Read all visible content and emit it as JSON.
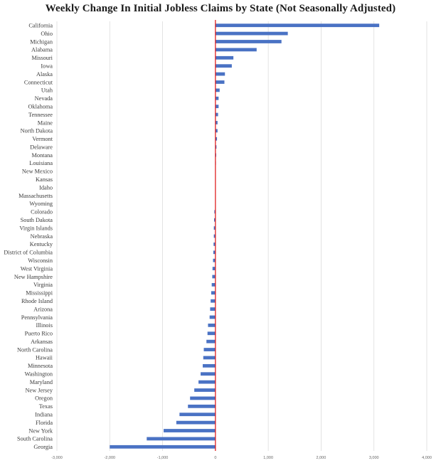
{
  "chart_data": {
    "type": "bar",
    "orientation": "horizontal",
    "title": "Weekly Change In Initial Jobless Claims by State (Not Seasonally Adjusted)",
    "xlabel": "",
    "ylabel": "",
    "xlim": [
      -3000,
      4000
    ],
    "xticks": [
      -3000,
      -2000,
      -1000,
      0,
      1000,
      2000,
      3000,
      4000
    ],
    "xtick_labels": [
      "-3,000",
      "-2,000",
      "-1,000",
      "0",
      "1,000",
      "2,000",
      "3,000",
      "4,000"
    ],
    "grid": true,
    "legend": "none",
    "bar_color": "#4a72c4",
    "zero_line_color": "#e02020",
    "categories": [
      "California",
      "Ohio",
      "Michigan",
      "Alabama",
      "Missouri",
      "Iowa",
      "Alaska",
      "Connecticut",
      "Utah",
      "Nevada",
      "Oklahoma",
      "Tennessee",
      "Maine",
      "North Dakota",
      "Vermont",
      "Delaware",
      "Montana",
      "Louisiana",
      "New Mexico",
      "Kansas",
      "Idaho",
      "Massachusetts",
      "Wyoming",
      "Colorado",
      "South Dakota",
      "Virgin Islands",
      "Nebraska",
      "Kentucky",
      "District of Columbia",
      "Wisconsin",
      "West Virginia",
      "New Hampshire",
      "Virginia",
      "Mississippi",
      "Rhode Island",
      "Arizona",
      "Pennsylvania",
      "Illinois",
      "Puerto Rico",
      "Arkansas",
      "North Carolina",
      "Hawaii",
      "Minnesota",
      "Washington",
      "Maryland",
      "New Jersey",
      "Oregon",
      "Texas",
      "Indiana",
      "Florida",
      "New York",
      "South Carolina",
      "Georgia"
    ],
    "values": [
      3100,
      1370,
      1250,
      780,
      340,
      310,
      180,
      170,
      80,
      60,
      60,
      50,
      40,
      40,
      30,
      20,
      15,
      10,
      0,
      0,
      0,
      0,
      0,
      -20,
      -25,
      -30,
      -30,
      -35,
      -40,
      -45,
      -55,
      -60,
      -70,
      -80,
      -90,
      -100,
      -110,
      -140,
      -150,
      -170,
      -220,
      -230,
      -240,
      -280,
      -320,
      -400,
      -480,
      -520,
      -680,
      -740,
      -980,
      -1300,
      -2000
    ]
  }
}
